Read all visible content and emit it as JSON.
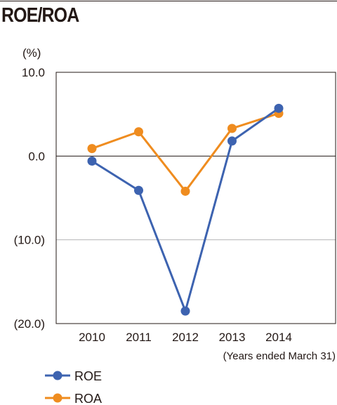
{
  "page": {
    "title": "ROE/ROA"
  },
  "chart_data": {
    "type": "line",
    "title": "ROE/ROA",
    "unit_label": "(%)",
    "x_note": "(Years ended March 31)",
    "categories": [
      "2010",
      "2011",
      "2012",
      "2013",
      "2014"
    ],
    "ylim": [
      -20,
      10
    ],
    "yticks": [
      10,
      0,
      -10,
      -20
    ],
    "ytick_labels": [
      "10.0",
      "0.0",
      "(10.0)",
      "(20.0)"
    ],
    "grid": true,
    "legend_position": "bottom-left",
    "series": [
      {
        "name": "ROE",
        "color": "#3d63b0",
        "values": [
          -0.6,
          -4.1,
          -18.5,
          1.8,
          5.7
        ]
      },
      {
        "name": "ROA",
        "color": "#ef8c1f",
        "values": [
          0.9,
          2.9,
          -4.2,
          3.3,
          5.1
        ]
      }
    ]
  }
}
